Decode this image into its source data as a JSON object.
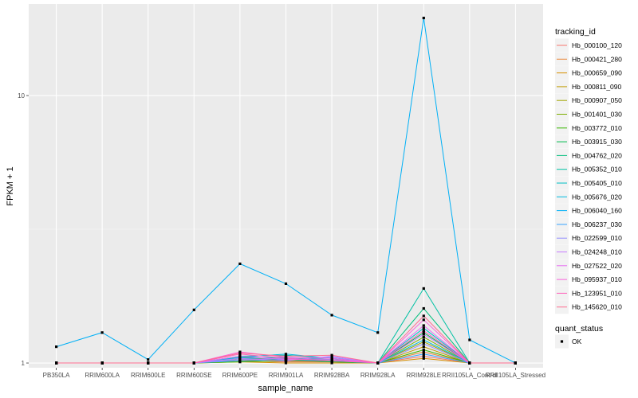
{
  "chart_data": {
    "type": "line",
    "title": "",
    "xlabel": "sample_name",
    "ylabel": "FPKM + 1",
    "y_scale": "log10",
    "ylim": [
      0.96,
      22
    ],
    "y_ticks": [
      1,
      10
    ],
    "y_tick_labels": [
      "1",
      "10"
    ],
    "grid": true,
    "categories": [
      "PB350LA",
      "RRIM600LA",
      "RRIM600LE",
      "RRIM600SE",
      "RRIM600PE",
      "RRIM901LA",
      "RRIM928BA",
      "RRIM928LA",
      "RRIM928LE",
      "RRII105LA_Control",
      "RRII105LA_Stressed"
    ],
    "legend_title": "tracking_id",
    "legend_position": "right",
    "series": [
      {
        "name": "Hb_000100_120",
        "color": "#F8766D",
        "values": [
          1,
          1,
          1,
          1,
          1.02,
          1.01,
          1.01,
          1,
          1.06,
          1,
          1
        ]
      },
      {
        "name": "Hb_000421_280",
        "color": "#EA8331",
        "values": [
          1,
          1,
          1,
          1,
          1.03,
          1.02,
          1.01,
          1,
          1.1,
          1,
          1
        ]
      },
      {
        "name": "Hb_000659_090",
        "color": "#D89000",
        "values": [
          1,
          1,
          1,
          1,
          1.01,
          1,
          1,
          1,
          1.04,
          1,
          1
        ]
      },
      {
        "name": "Hb_000811_090",
        "color": "#C09B00",
        "values": [
          1,
          1,
          1,
          1,
          1.02,
          1.03,
          1.02,
          1,
          1.15,
          1,
          1
        ]
      },
      {
        "name": "Hb_000907_050",
        "color": "#A3A500",
        "values": [
          1,
          1,
          1,
          1,
          1.03,
          1.05,
          1.02,
          1,
          1.2,
          1,
          1
        ]
      },
      {
        "name": "Hb_001401_030",
        "color": "#7CAE00",
        "values": [
          1,
          1,
          1,
          1,
          1.02,
          1.04,
          1.03,
          1,
          1.25,
          1,
          1
        ]
      },
      {
        "name": "Hb_003772_010",
        "color": "#39B600",
        "values": [
          1,
          1,
          1,
          1,
          1.01,
          1.02,
          1.02,
          1,
          1.12,
          1,
          1
        ]
      },
      {
        "name": "Hb_003915_030",
        "color": "#00BB4E",
        "values": [
          1,
          1,
          1,
          1,
          1.04,
          1.03,
          1.01,
          1,
          1.3,
          1,
          1
        ]
      },
      {
        "name": "Hb_004762_020",
        "color": "#00BF7D",
        "values": [
          1,
          1,
          1,
          1,
          1.05,
          1.04,
          1.03,
          1,
          1.6,
          1,
          1
        ]
      },
      {
        "name": "Hb_005352_010",
        "color": "#00C1A3",
        "values": [
          1,
          1,
          1,
          1,
          1.06,
          1.07,
          1.04,
          1,
          1.9,
          1,
          1
        ]
      },
      {
        "name": "Hb_005405_010",
        "color": "#00BFC4",
        "values": [
          1,
          1,
          1,
          1,
          1.04,
          1.05,
          1.03,
          1,
          1.35,
          1,
          1
        ]
      },
      {
        "name": "Hb_005676_020",
        "color": "#00BAE0",
        "values": [
          1,
          1,
          1,
          1,
          1.05,
          1.08,
          1.04,
          1,
          1.22,
          1,
          1
        ]
      },
      {
        "name": "Hb_006040_160",
        "color": "#00B0F6",
        "values": [
          1.15,
          1.3,
          1.03,
          1.58,
          2.35,
          1.98,
          1.51,
          1.3,
          19.5,
          1.22,
          1
        ]
      },
      {
        "name": "Hb_006237_030",
        "color": "#35A2FF",
        "values": [
          1,
          1,
          1,
          1,
          1.02,
          1.03,
          1.02,
          1,
          1.08,
          1,
          1
        ]
      },
      {
        "name": "Hb_022599_010",
        "color": "#9590FF",
        "values": [
          1,
          1,
          1,
          1,
          1.03,
          1.04,
          1.05,
          1,
          1.18,
          1,
          1
        ]
      },
      {
        "name": "Hb_024248_010",
        "color": "#C77CFF",
        "values": [
          1,
          1,
          1,
          1,
          1.04,
          1.02,
          1.06,
          1,
          1.28,
          1,
          1
        ]
      },
      {
        "name": "Hb_027522_020",
        "color": "#E76BF3",
        "values": [
          1,
          1,
          1,
          1,
          1.06,
          1.03,
          1.03,
          1,
          1.38,
          1,
          1
        ]
      },
      {
        "name": "Hb_095937_010",
        "color": "#FA62DB",
        "values": [
          1,
          1,
          1,
          1,
          1.1,
          1.05,
          1.04,
          1,
          1.45,
          1,
          1
        ]
      },
      {
        "name": "Hb_123951_010",
        "color": "#FF62BC",
        "values": [
          1,
          1,
          1,
          1,
          1.08,
          1.04,
          1.02,
          1,
          1.32,
          1,
          1
        ]
      },
      {
        "name": "Hb_145620_010",
        "color": "#FF6C91",
        "values": [
          1,
          1,
          1,
          1,
          1.09,
          1.06,
          1.07,
          1,
          1.5,
          1,
          1
        ]
      }
    ],
    "shape_legend_title": "quant_status",
    "shape_legend": [
      {
        "label": "OK",
        "color": "#000000"
      }
    ]
  }
}
